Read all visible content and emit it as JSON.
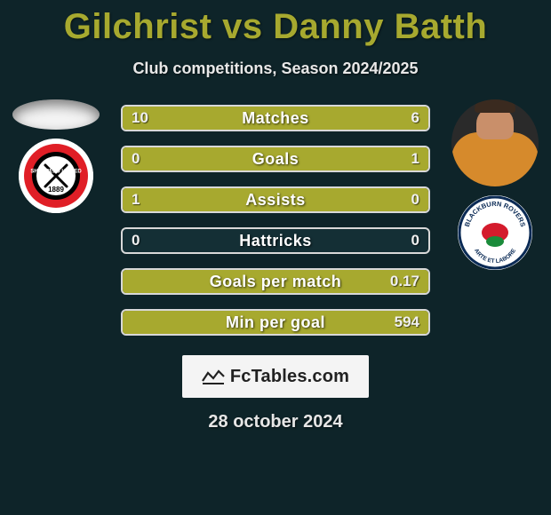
{
  "title": "Gilchrist vs Danny Batth",
  "subtitle": "Club competitions, Season 2024/2025",
  "date": "28 october 2024",
  "footer_site": "FcTables.com",
  "colors": {
    "accent": "#a7a92f",
    "bar_border": "#d8d8d8",
    "bar_bg": "#142f35",
    "page_bg": "#0e2429",
    "title_color": "#a7a92f"
  },
  "players": {
    "left": {
      "name": "Gilchrist",
      "club_name": "Sheffield United"
    },
    "right": {
      "name": "Danny Batth",
      "club_name": "Blackburn Rovers"
    }
  },
  "stats": [
    {
      "label": "Matches",
      "left_value": "10",
      "right_value": "6",
      "left_pct": 62.5,
      "right_pct": 37.5
    },
    {
      "label": "Goals",
      "left_value": "0",
      "right_value": "1",
      "left_pct": 0,
      "right_pct": 100
    },
    {
      "label": "Assists",
      "left_value": "1",
      "right_value": "0",
      "left_pct": 100,
      "right_pct": 0
    },
    {
      "label": "Hattricks",
      "left_value": "0",
      "right_value": "0",
      "left_pct": 0,
      "right_pct": 0
    },
    {
      "label": "Goals per match",
      "left_value": "",
      "right_value": "0.17",
      "left_pct": 0,
      "right_pct": 100
    },
    {
      "label": "Min per goal",
      "left_value": "",
      "right_value": "594",
      "left_pct": 0,
      "right_pct": 100
    }
  ]
}
